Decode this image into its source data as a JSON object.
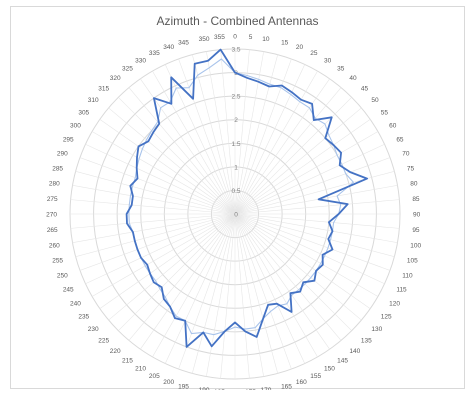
{
  "chart_data": {
    "type": "radar",
    "title": "Azimuth - Combined Antennas",
    "angles": [
      "0",
      "5",
      "10",
      "15",
      "20",
      "25",
      "30",
      "35",
      "40",
      "45",
      "50",
      "55",
      "60",
      "65",
      "70",
      "75",
      "80",
      "85",
      "90",
      "95",
      "100",
      "105",
      "110",
      "115",
      "120",
      "125",
      "130",
      "135",
      "140",
      "145",
      "150",
      "155",
      "160",
      "165",
      "170",
      "175",
      "180",
      "185",
      "190",
      "195",
      "200",
      "205",
      "210",
      "215",
      "220",
      "225",
      "230",
      "235",
      "240",
      "245",
      "250",
      "255",
      "260",
      "265",
      "270",
      "275",
      "280",
      "285",
      "290",
      "295",
      "300",
      "305",
      "310",
      "315",
      "320",
      "325",
      "330",
      "335",
      "340",
      "345",
      "350",
      "355"
    ],
    "radial_ticks": [
      "0",
      "0.5",
      "1",
      "1.5",
      "2",
      "2.5",
      "3",
      "3.5"
    ],
    "rlim": [
      0,
      3.5
    ],
    "grid": true,
    "legend": "none",
    "series": [
      {
        "color": "#4472c4",
        "values": [
          3.0,
          2.9,
          2.85,
          2.8,
          2.9,
          2.85,
          2.8,
          2.85,
          2.6,
          2.9,
          2.5,
          2.55,
          2.6,
          2.45,
          2.6,
          2.9,
          1.8,
          2.4,
          2.2,
          2.0,
          2.1,
          2.05,
          2.2,
          2.05,
          2.15,
          2.1,
          2.2,
          2.05,
          2.15,
          2.05,
          2.4,
          2.1,
          2.05,
          2.3,
          2.65,
          2.5,
          2.3,
          2.5,
          2.85,
          2.6,
          3.0,
          2.5,
          2.55,
          2.4,
          2.35,
          2.2,
          2.25,
          2.2,
          2.15,
          2.2,
          2.2,
          2.2,
          2.2,
          2.3,
          2.3,
          2.2,
          2.2,
          2.3,
          2.2,
          2.3,
          2.4,
          2.5,
          2.4,
          2.45,
          2.5,
          3.0,
          2.7,
          3.2,
          2.6,
          3.3,
          3.3,
          3.5
        ]
      },
      {
        "color": "#a9c4eb",
        "values": [
          3.0,
          2.95,
          2.9,
          2.85,
          2.85,
          2.8,
          2.75,
          2.75,
          2.65,
          2.7,
          2.6,
          2.55,
          2.5,
          2.5,
          2.5,
          2.6,
          2.2,
          2.25,
          2.2,
          2.1,
          2.1,
          2.1,
          2.1,
          2.1,
          2.1,
          2.1,
          2.1,
          2.1,
          2.1,
          2.1,
          2.2,
          2.15,
          2.2,
          2.3,
          2.45,
          2.45,
          2.4,
          2.5,
          2.6,
          2.6,
          2.7,
          2.5,
          2.5,
          2.4,
          2.3,
          2.25,
          2.2,
          2.2,
          2.2,
          2.2,
          2.2,
          2.2,
          2.2,
          2.25,
          2.25,
          2.25,
          2.25,
          2.25,
          2.25,
          2.3,
          2.35,
          2.4,
          2.45,
          2.5,
          2.55,
          2.75,
          2.75,
          2.95,
          2.85,
          3.05,
          3.15,
          3.3
        ]
      }
    ]
  }
}
